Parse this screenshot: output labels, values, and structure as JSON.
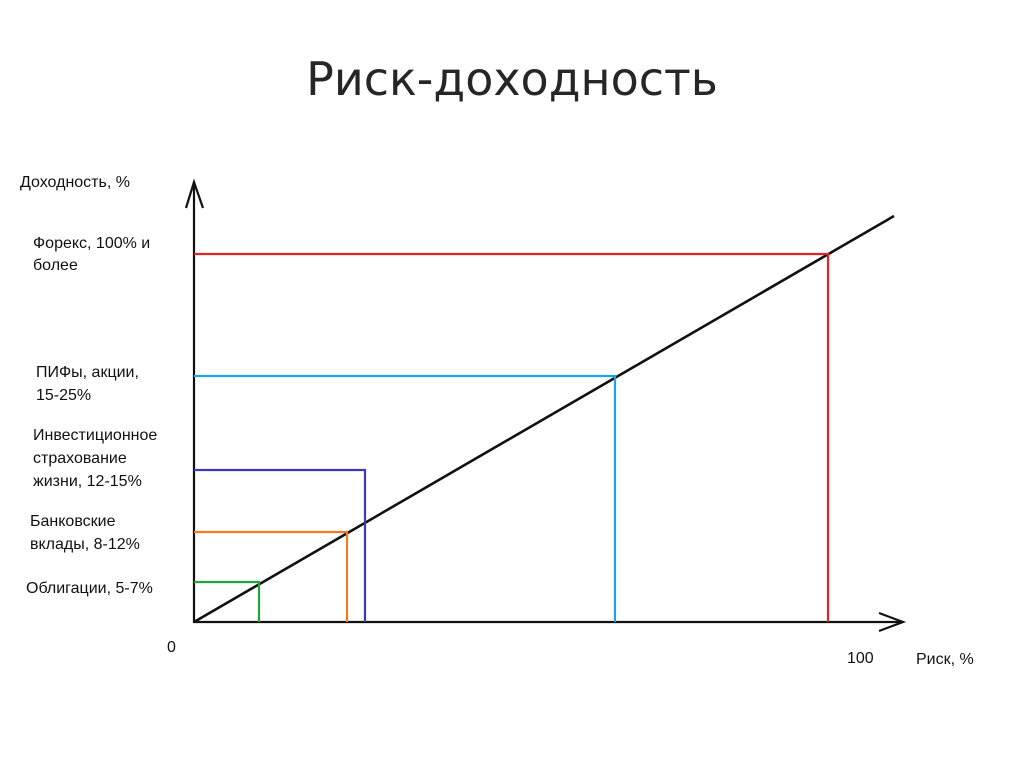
{
  "title": "Риск-доходность",
  "diagram": {
    "y_axis_label": "Доходность, %",
    "x_axis_label": "Риск, %",
    "origin_label": "0",
    "x_max_label": "100",
    "levels": [
      {
        "id": "bonds",
        "lines": [
          "Облигации, 5-7%"
        ],
        "color": "#22a33c"
      },
      {
        "id": "deposits",
        "lines": [
          "Банковские",
          "вклады, 8-12%"
        ],
        "color": "#f07c24"
      },
      {
        "id": "insurance",
        "lines": [
          "Инвестиционное",
          "страхование",
          "жизни, 12-15%"
        ],
        "color": "#3b3bb5"
      },
      {
        "id": "funds",
        "lines": [
          "ПИФы, акции,",
          "15-25%"
        ],
        "color": "#1ea3e8"
      },
      {
        "id": "forex",
        "lines": [
          "Форекс, 100% и",
          "более"
        ],
        "color": "#e02424"
      }
    ]
  }
}
